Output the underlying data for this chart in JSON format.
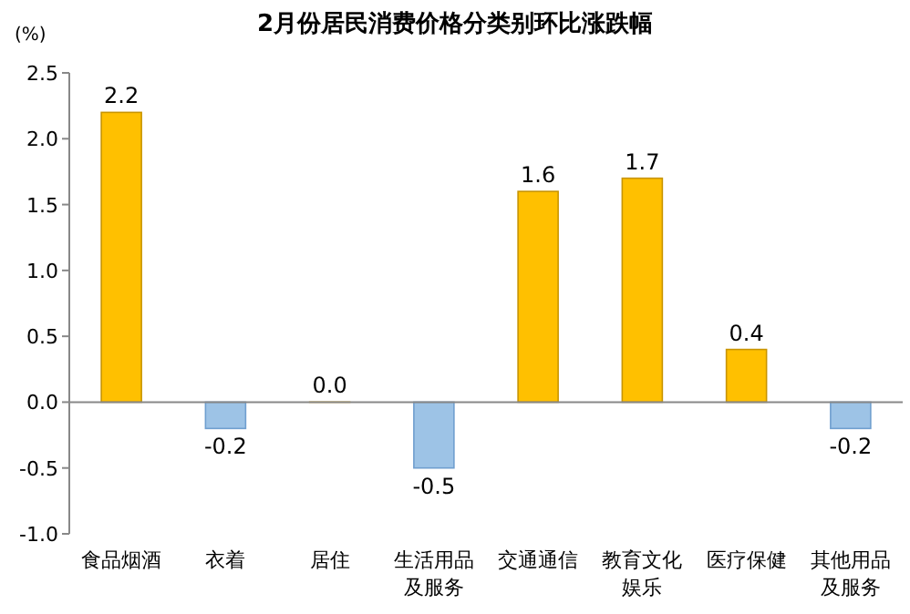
{
  "chart_data": {
    "type": "bar",
    "title": "2月份居民消费价格分类别环比涨跌幅",
    "ylabel": "(%)",
    "categories": [
      "食品烟酒",
      "衣着",
      "居住",
      "生活用品及服务",
      "交通通信",
      "教育文化娱乐",
      "医疗保健",
      "其他用品及服务"
    ],
    "values": [
      2.2,
      -0.2,
      0.0,
      -0.5,
      1.6,
      1.7,
      0.4,
      -0.2
    ],
    "value_labels": [
      "2.2",
      "-0.2",
      "0.0",
      "-0.5",
      "1.6",
      "1.7",
      "0.4",
      "-0.2"
    ],
    "colors": [
      "#ffc000",
      "#9dc3e6",
      "#ffc000",
      "#9dc3e6",
      "#ffc000",
      "#ffc000",
      "#ffc000",
      "#9dc3e6"
    ],
    "ylim": [
      -1,
      2.5
    ],
    "yticks": [
      {
        "value": -1,
        "label": "-1.0"
      },
      {
        "value": -0.5,
        "label": "-0.5"
      },
      {
        "value": 0,
        "label": "0.0"
      },
      {
        "value": 0.5,
        "label": "0.5"
      },
      {
        "value": 1,
        "label": "1.0"
      },
      {
        "value": 1.5,
        "label": "1.5"
      },
      {
        "value": 2,
        "label": "2.0"
      },
      {
        "value": 2.5,
        "label": "2.5"
      }
    ]
  }
}
